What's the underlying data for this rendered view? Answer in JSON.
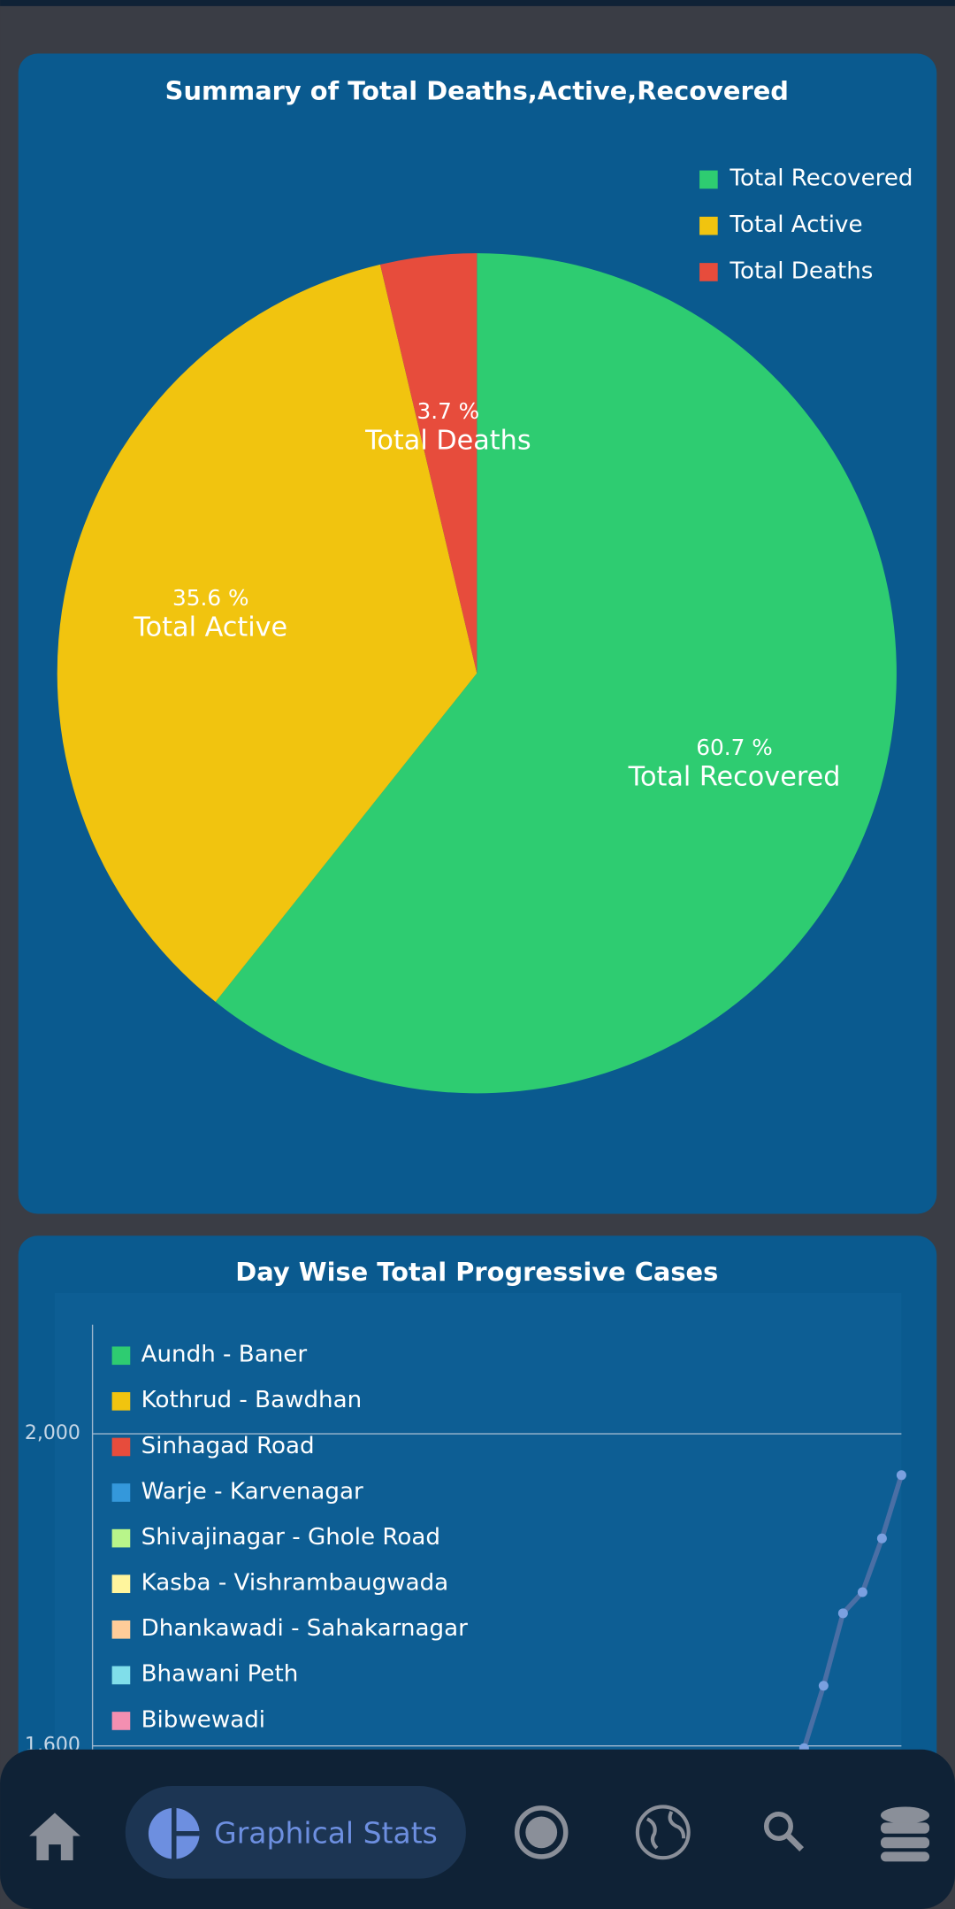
{
  "chart_data": [
    {
      "type": "pie",
      "title": "Summary of Total Deaths,Active,Recovered",
      "categories": [
        "Total Recovered",
        "Total Active",
        "Total Deaths"
      ],
      "values": [
        60.7,
        35.6,
        3.7
      ],
      "value_labels": [
        "60.7 %",
        "35.6 %",
        "3.7 %"
      ],
      "colors": [
        "#2ecc71",
        "#f1c40f",
        "#e74c3c"
      ],
      "legend": "top-right"
    },
    {
      "type": "line",
      "title": "Day Wise Total Progressive Cases",
      "legend": [
        {
          "name": "Aundh - Baner",
          "color": "#2ecc71"
        },
        {
          "name": "Kothrud - Bawdhan",
          "color": "#f1c40f"
        },
        {
          "name": "Sinhagad Road",
          "color": "#e74c3c"
        },
        {
          "name": "Warje - Karvenagar",
          "color": "#3498db"
        },
        {
          "name": "Shivajinagar - Ghole Road",
          "color": "#b8f58a"
        },
        {
          "name": "Kasba - Vishrambaugwada",
          "color": "#fff59d"
        },
        {
          "name": "Dhankawadi - Sahakarnagar",
          "color": "#ffcc99"
        },
        {
          "name": "Bhawani Peth",
          "color": "#80deea"
        },
        {
          "name": "Bibwewadi",
          "color": "#f48fb1"
        }
      ],
      "series": [
        {
          "color": "#4a6fa5",
          "values": [
            1597,
            1677,
            1770,
            1797,
            1866,
            1947
          ]
        }
      ],
      "ylim": [
        1600,
        2140
      ],
      "yticks": [
        {
          "value": 1600,
          "label": "1,600"
        },
        {
          "value": 2000,
          "label": "2,000"
        }
      ],
      "grid": true
    }
  ],
  "nav": {
    "active": "Graphical Stats"
  }
}
